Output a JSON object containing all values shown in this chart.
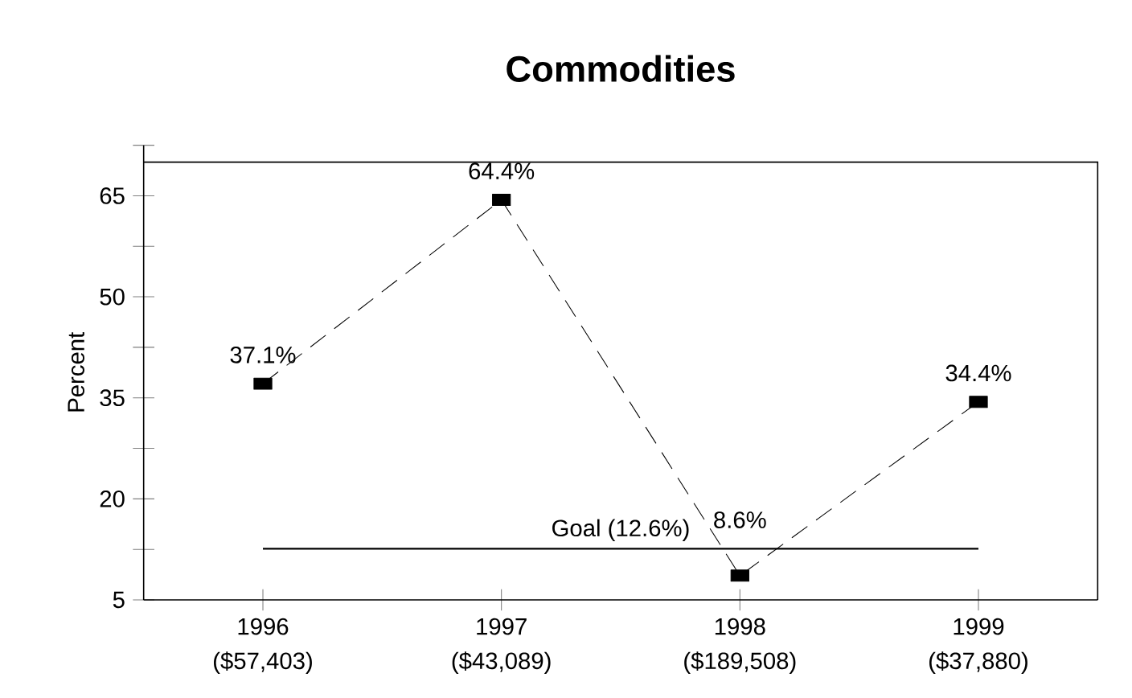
{
  "chart_data": {
    "type": "line",
    "title": "Commodities",
    "ylabel": "Percent",
    "categories": [
      "1996 ($57,403)",
      "1997 ($43,089)",
      "1998 ($189,508)",
      "1999 ($37,880)"
    ],
    "series": [
      {
        "color": "#000000",
        "values": [
          37.1,
          64.4,
          8.6,
          34.4
        ],
        "value_labels": [
          "37.1%",
          "64.4%",
          "8.6%",
          "34.4%"
        ]
      }
    ],
    "marker": "square",
    "line_style": "dashed",
    "grid": false,
    "ylim": [
      5,
      72.5
    ],
    "yticks": [
      5,
      {
        "value": 12.5,
        "label": null
      },
      20,
      {
        "value": 27.5,
        "label": null
      },
      35,
      {
        "value": 42.5,
        "label": null
      },
      50,
      {
        "value": 57.5,
        "label": null
      },
      65,
      {
        "value": 72.5,
        "label": null
      }
    ],
    "ref_lines": [
      {
        "axis": "y",
        "value": 12.6,
        "label": "Goal (12.6%)",
        "color": "#000000"
      }
    ]
  }
}
